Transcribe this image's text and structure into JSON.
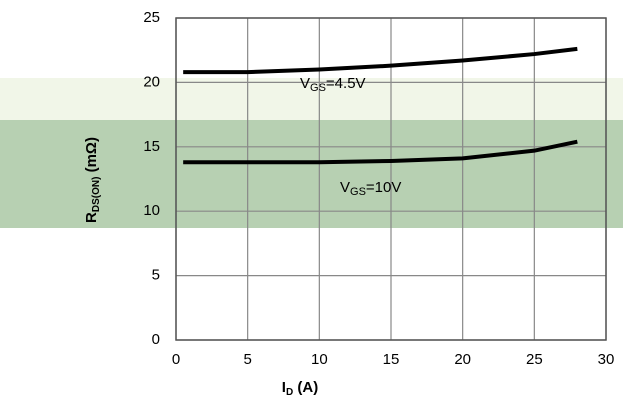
{
  "chart_data": {
    "type": "line",
    "ylabel": {
      "main": "R",
      "sub": "DS(ON)",
      "rest": " (mΩ)"
    },
    "xlabel": {
      "main": "I",
      "sub": "D",
      "rest": " (A)"
    },
    "x": [
      0.5,
      5,
      10,
      15,
      20,
      25,
      28
    ],
    "series": [
      {
        "name": "VGS=4.5V",
        "color": "#000000",
        "values": [
          20.8,
          20.8,
          21,
          21.3,
          21.7,
          22.2,
          22.6
        ]
      },
      {
        "name": "VGS=10V",
        "color": "#000000",
        "values": [
          13.8,
          13.8,
          13.8,
          13.9,
          14.1,
          14.7,
          15.4
        ]
      }
    ],
    "annotations": [
      {
        "main": "V",
        "sub": "GS",
        "rest": "=4.5V"
      },
      {
        "main": "V",
        "sub": "GS",
        "rest": "=10V"
      }
    ],
    "xlim": [
      0,
      30
    ],
    "xticks": [
      0,
      5,
      10,
      15,
      20,
      25,
      30
    ],
    "ylim": [
      0,
      25
    ],
    "yticks": [
      0,
      5,
      10,
      15,
      20,
      25
    ],
    "grid": true
  }
}
